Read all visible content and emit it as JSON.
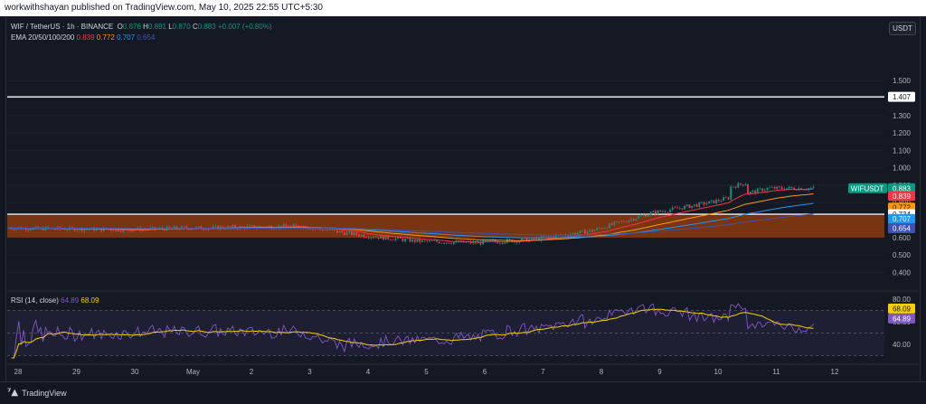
{
  "header": {
    "published_text": "workwithshayan published on TradingView.com, May 10, 2025 22:55 UTC+5:30"
  },
  "legend": {
    "symbol": "WIF / TetherUS · 1h · BINANCE",
    "open_label": "O",
    "open": "0.876",
    "high_label": "H",
    "high": "0.891",
    "low_label": "L",
    "low": "0.870",
    "close_label": "C",
    "close": "0.883",
    "change": "+0.007 (+0.80%)",
    "ema_label": "EMA 20/50/100/200",
    "ema20": "0.839",
    "ema50": "0.772",
    "ema100": "0.707",
    "ema200": "0.654"
  },
  "rsi_legend": {
    "label": "RSI (14, close)",
    "rsi": "64.89",
    "ma": "68.09"
  },
  "currency_button": "USDT",
  "price_axis": [
    "1.500",
    "1.400",
    "1.300",
    "1.200",
    "1.100",
    "1.000",
    "0.900",
    "0.800",
    "0.700",
    "0.600",
    "0.500",
    "0.400"
  ],
  "price_tags": {
    "resistance": "1.407",
    "symbol_tag": "WIFUSDT",
    "last_price": "0.883",
    "ema20": "0.839",
    "ema50": "0.772",
    "support_line": "0.734",
    "ema100": "0.707",
    "ema200": "0.654"
  },
  "rsi_axis": [
    "80.00",
    "60.00",
    "40.00"
  ],
  "rsi_tags": {
    "ma": "68.09",
    "rsi": "64.89"
  },
  "time_axis": [
    "28",
    "29",
    "30",
    "May",
    "2",
    "3",
    "4",
    "5",
    "6",
    "7",
    "8",
    "9",
    "10",
    "11",
    "12"
  ],
  "brand": "TradingView",
  "colors": {
    "background": "#131722",
    "up": "#089981",
    "down": "#f23645",
    "ema20": "#f23645",
    "ema50": "#ff9800",
    "ema100": "#2196f3",
    "ema200": "#3f51b5",
    "zone": "#8b3a0f",
    "rsi_line": "#7e57c2",
    "rsi_ma": "#f5d000"
  },
  "chart_data": {
    "type": "candlestick",
    "symbol": "WIF / TetherUS",
    "interval": "1h",
    "x_ticks": [
      "28",
      "29",
      "30",
      "May",
      "2",
      "3",
      "4",
      "5",
      "6",
      "7",
      "8",
      "9",
      "10",
      "11",
      "12"
    ],
    "y_range": [
      0.35,
      1.55
    ],
    "daily_closes": [
      {
        "day": "28",
        "close": 0.655
      },
      {
        "day": "29",
        "close": 0.65
      },
      {
        "day": "30",
        "close": 0.645
      },
      {
        "day": "May",
        "close": 0.655
      },
      {
        "day": "2",
        "close": 0.66
      },
      {
        "day": "3",
        "close": 0.665
      },
      {
        "day": "4",
        "close": 0.615
      },
      {
        "day": "5",
        "close": 0.58
      },
      {
        "day": "6",
        "close": 0.57
      },
      {
        "day": "7",
        "close": 0.59
      },
      {
        "day": "8",
        "close": 0.64
      },
      {
        "day": "9",
        "close": 0.74
      },
      {
        "day": "10",
        "close": 0.8
      },
      {
        "day": "11",
        "close": 0.883
      }
    ],
    "horizontal_levels": [
      1.407,
      0.734
    ],
    "support_zone": [
      0.6,
      0.728
    ],
    "ema": {
      "ema20": 0.839,
      "ema50": 0.772,
      "ema100": 0.707,
      "ema200": 0.654
    },
    "rsi": {
      "value": 64.89,
      "ma": 68.09,
      "bands": [
        70,
        30
      ]
    }
  }
}
